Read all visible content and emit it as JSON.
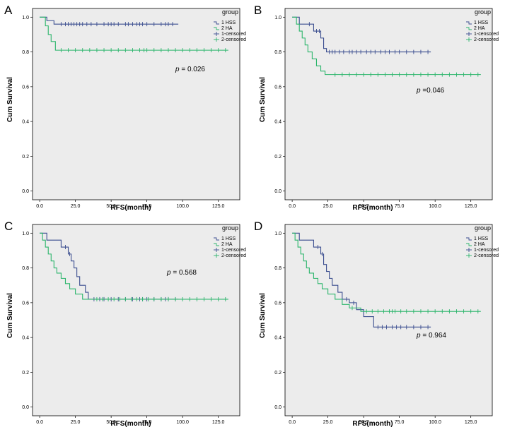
{
  "colors": {
    "hss": "#3a4d8f",
    "ha": "#2bb56b",
    "plot_bg": "#ececec"
  },
  "chart_data": [
    {
      "panel": "A",
      "type": "line",
      "xlabel": "RFS(month)",
      "ylabel": "Cum Survival",
      "xlim": [
        -5,
        140
      ],
      "ylim": [
        -0.05,
        1.05
      ],
      "xticks": [
        "0.0",
        "25.0",
        "50.0",
        "75.0",
        "100.0",
        "125.0"
      ],
      "yticks": [
        "0.0",
        "0.2",
        "0.4",
        "0.6",
        "0.8",
        "1.0"
      ],
      "legend": {
        "title": "group",
        "items": [
          "1  HSS",
          "2  HA",
          "1-censored",
          "2-censored"
        ],
        "position": "top-right"
      },
      "p_label": "p",
      "p_value": "= 0.026",
      "series": [
        {
          "name": "HSS",
          "steps": [
            [
              0,
              1.0
            ],
            [
              5,
              0.98
            ],
            [
              10,
              0.96
            ],
            [
              97,
              0.96
            ]
          ],
          "censored": [
            15,
            18,
            20,
            22,
            24,
            26,
            28,
            30,
            33,
            36,
            40,
            45,
            48,
            50,
            52,
            55,
            60,
            62,
            65,
            68,
            70,
            72,
            75,
            80,
            85,
            88,
            90,
            93
          ]
        },
        {
          "name": "HA",
          "steps": [
            [
              0,
              1.0
            ],
            [
              4,
              0.95
            ],
            [
              6,
              0.9
            ],
            [
              8,
              0.86
            ],
            [
              11,
              0.81
            ],
            [
              132,
              0.81
            ]
          ],
          "censored": [
            15,
            20,
            25,
            30,
            35,
            40,
            45,
            50,
            55,
            60,
            65,
            70,
            73,
            75,
            80,
            85,
            90,
            95,
            100,
            105,
            110,
            115,
            120,
            125,
            130
          ]
        }
      ]
    },
    {
      "panel": "B",
      "type": "line",
      "xlabel": "RFS(month)",
      "ylabel": "Cum Survival",
      "xlim": [
        -5,
        140
      ],
      "ylim": [
        -0.05,
        1.05
      ],
      "xticks": [
        "0.0",
        "25.0",
        "50.0",
        "75.0",
        "100.0",
        "125.0"
      ],
      "yticks": [
        "0.0",
        "0.2",
        "0.4",
        "0.6",
        "0.8",
        "1.0"
      ],
      "legend": {
        "title": "group",
        "items": [
          "1  HSS",
          "2  HA",
          "1-censored",
          "2-censored"
        ],
        "position": "top-right"
      },
      "p_label": "p",
      "p_value": "=0.046",
      "series": [
        {
          "name": "HSS",
          "steps": [
            [
              0,
              1.0
            ],
            [
              5,
              0.96
            ],
            [
              15,
              0.92
            ],
            [
              20,
              0.88
            ],
            [
              22,
              0.82
            ],
            [
              24,
              0.8
            ],
            [
              97,
              0.8
            ]
          ],
          "censored": [
            12,
            17,
            19,
            26,
            28,
            30,
            33,
            36,
            40,
            42,
            45,
            48,
            52,
            55,
            58,
            62,
            65,
            68,
            72,
            75,
            80,
            85,
            90,
            95
          ]
        },
        {
          "name": "HA",
          "steps": [
            [
              0,
              1.0
            ],
            [
              3,
              0.96
            ],
            [
              5,
              0.92
            ],
            [
              7,
              0.88
            ],
            [
              9,
              0.84
            ],
            [
              11,
              0.8
            ],
            [
              14,
              0.76
            ],
            [
              17,
              0.72
            ],
            [
              20,
              0.69
            ],
            [
              23,
              0.67
            ],
            [
              132,
              0.67
            ]
          ],
          "censored": [
            30,
            35,
            40,
            45,
            50,
            55,
            60,
            65,
            70,
            75,
            80,
            85,
            90,
            95,
            100,
            105,
            110,
            115,
            120,
            125,
            130
          ]
        }
      ]
    },
    {
      "panel": "C",
      "type": "line",
      "xlabel": "RFS(month)",
      "ylabel": "Cum Survival",
      "xlim": [
        -5,
        140
      ],
      "ylim": [
        -0.05,
        1.05
      ],
      "xticks": [
        "0.0",
        "25.0",
        "50.0",
        "75.0",
        "100.0",
        "125.0"
      ],
      "yticks": [
        "0.0",
        "0.2",
        "0.4",
        "0.6",
        "0.8",
        "1.0"
      ],
      "legend": {
        "title": "group",
        "items": [
          "1  HSS",
          "2  HA",
          "1-censored",
          "2-censored"
        ],
        "position": "top-right"
      },
      "p_label": "p",
      "p_value": "= 0.568",
      "series": [
        {
          "name": "HSS",
          "steps": [
            [
              0,
              1.0
            ],
            [
              5,
              0.96
            ],
            [
              15,
              0.92
            ],
            [
              20,
              0.88
            ],
            [
              22,
              0.84
            ],
            [
              24,
              0.8
            ],
            [
              26,
              0.75
            ],
            [
              28,
              0.7
            ],
            [
              32,
              0.66
            ],
            [
              34,
              0.62
            ],
            [
              97,
              0.62
            ]
          ],
          "censored": [
            18,
            21,
            38,
            42,
            45,
            50,
            55,
            60,
            65,
            70,
            72,
            75,
            80,
            85,
            88,
            90,
            95
          ]
        },
        {
          "name": "HA",
          "steps": [
            [
              0,
              1.0
            ],
            [
              2,
              0.96
            ],
            [
              4,
              0.92
            ],
            [
              6,
              0.88
            ],
            [
              8,
              0.84
            ],
            [
              10,
              0.8
            ],
            [
              12,
              0.77
            ],
            [
              15,
              0.74
            ],
            [
              18,
              0.71
            ],
            [
              21,
              0.68
            ],
            [
              25,
              0.65
            ],
            [
              30,
              0.62
            ],
            [
              132,
              0.62
            ]
          ],
          "censored": [
            40,
            44,
            48,
            52,
            56,
            60,
            64,
            68,
            72,
            76,
            80,
            85,
            90,
            95,
            100,
            105,
            110,
            115,
            120,
            125,
            130
          ]
        }
      ]
    },
    {
      "panel": "D",
      "type": "line",
      "xlabel": "RFS(month)",
      "ylabel": "Cum Survival",
      "xlim": [
        -5,
        140
      ],
      "ylim": [
        -0.05,
        1.05
      ],
      "xticks": [
        "0.0",
        "25.0",
        "50.0",
        "75.0",
        "100.0",
        "125.0"
      ],
      "yticks": [
        "0.0",
        "0.2",
        "0.4",
        "0.6",
        "0.8",
        "1.0"
      ],
      "legend": {
        "title": "group",
        "items": [
          "1  HSS",
          "2  HA",
          "1-censored",
          "2-censored"
        ],
        "position": "top-right"
      },
      "p_label": "p",
      "p_value": "= 0.964",
      "series": [
        {
          "name": "HSS",
          "steps": [
            [
              0,
              1.0
            ],
            [
              5,
              0.96
            ],
            [
              15,
              0.92
            ],
            [
              20,
              0.88
            ],
            [
              22,
              0.82
            ],
            [
              24,
              0.78
            ],
            [
              26,
              0.74
            ],
            [
              28,
              0.7
            ],
            [
              32,
              0.66
            ],
            [
              35,
              0.62
            ],
            [
              40,
              0.6
            ],
            [
              45,
              0.56
            ],
            [
              50,
              0.52
            ],
            [
              57,
              0.46
            ],
            [
              97,
              0.46
            ]
          ],
          "censored": [
            18,
            21,
            38,
            43,
            60,
            63,
            66,
            70,
            73,
            76,
            80,
            85,
            90,
            95
          ]
        },
        {
          "name": "HA",
          "steps": [
            [
              0,
              1.0
            ],
            [
              2,
              0.96
            ],
            [
              4,
              0.92
            ],
            [
              6,
              0.88
            ],
            [
              8,
              0.84
            ],
            [
              10,
              0.8
            ],
            [
              12,
              0.77
            ],
            [
              15,
              0.74
            ],
            [
              18,
              0.71
            ],
            [
              21,
              0.68
            ],
            [
              25,
              0.65
            ],
            [
              30,
              0.62
            ],
            [
              35,
              0.59
            ],
            [
              40,
              0.57
            ],
            [
              48,
              0.55
            ],
            [
              132,
              0.55
            ]
          ],
          "censored": [
            42,
            52,
            56,
            60,
            64,
            68,
            70,
            72,
            76,
            80,
            85,
            90,
            95,
            100,
            105,
            110,
            115,
            120,
            125,
            130
          ]
        }
      ]
    }
  ]
}
